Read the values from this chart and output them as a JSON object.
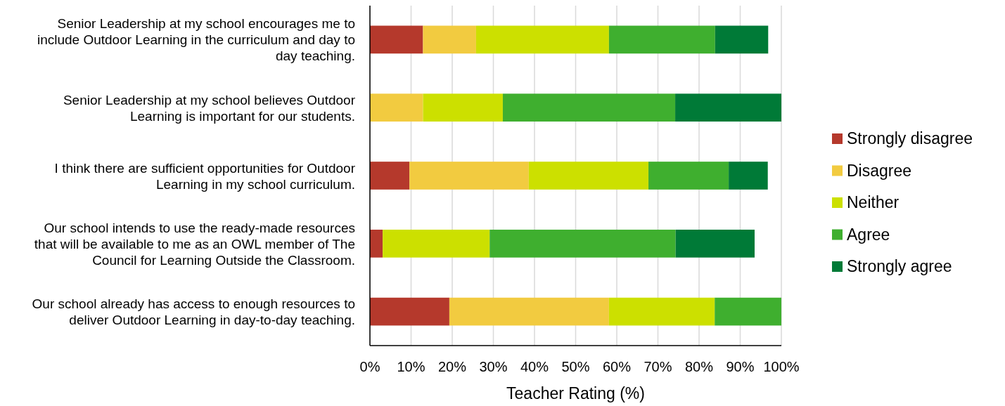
{
  "chart_data": {
    "type": "bar",
    "orientation": "horizontal",
    "stacked": true,
    "xlabel": "Teacher Rating (%)",
    "categories": [
      "Senior Leadership at my school encourages me to include Outdoor Learning in the curriculum and day to day teaching.",
      "Senior Leadership at my school believes Outdoor Learning is important for our students.",
      "I think there are sufficient opportunities for Outdoor Learning in my school curriculum.",
      "Our school intends to use the ready-made resources that will be available to me as an OWL member of The Council for Learning Outside the Classroom.",
      "Our school already has access to enough resources to deliver Outdoor Learning in day-to-day teaching."
    ],
    "series": [
      {
        "name": "Strongly disagree",
        "color": "#b5392c",
        "values": [
          12.9,
          0,
          9.6,
          3.1,
          19.3
        ]
      },
      {
        "name": "Disagree",
        "color": "#f2cb40",
        "values": [
          12.9,
          12.9,
          29.0,
          0,
          38.8
        ]
      },
      {
        "name": "Neither",
        "color": "#cce000",
        "values": [
          32.3,
          19.4,
          29.1,
          26.0,
          25.7
        ]
      },
      {
        "name": "Agree",
        "color": "#3faf2f",
        "values": [
          25.8,
          41.9,
          19.5,
          45.2,
          16.2
        ]
      },
      {
        "name": "Strongly agree",
        "color": "#007a37",
        "values": [
          12.9,
          25.8,
          9.5,
          19.2,
          0
        ]
      }
    ],
    "xlim": [
      0,
      100
    ],
    "xticks": [
      {
        "value": 0,
        "label": "0%"
      },
      {
        "value": 10,
        "label": "10%"
      },
      {
        "value": 20,
        "label": "20%"
      },
      {
        "value": 30,
        "label": "30%"
      },
      {
        "value": 40,
        "label": "40%"
      },
      {
        "value": 50,
        "label": "50%"
      },
      {
        "value": 60,
        "label": "60%"
      },
      {
        "value": 70,
        "label": "70%"
      },
      {
        "value": 80,
        "label": "80%"
      },
      {
        "value": 90,
        "label": "90%"
      },
      {
        "value": 100,
        "label": "100%"
      }
    ],
    "grid": "x",
    "legend": "right"
  }
}
